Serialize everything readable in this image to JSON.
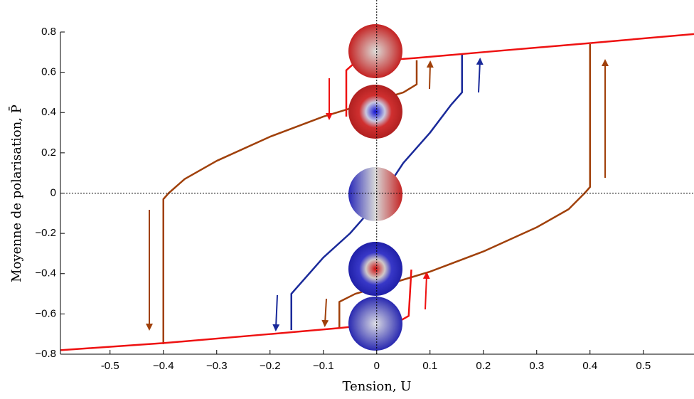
{
  "chart_data": {
    "type": "line",
    "xlabel": "Tension, U",
    "ylabel": "Moyenne de polarisation, P̄",
    "xlim": [
      -0.593,
      0.595
    ],
    "ylim": [
      -0.8,
      0.8
    ],
    "xticks": [
      -0.5,
      {
        "value": -0.4,
        "label": "−0.4"
      },
      {
        "value": -0.3,
        "label": "−0.3"
      },
      {
        "value": -0.2,
        "label": "−0.2"
      },
      {
        "value": -0.1,
        "label": "−0.1"
      },
      0,
      0.1,
      0.2,
      0.3,
      0.4,
      0.5
    ],
    "yticks": [
      {
        "value": -0.8,
        "label": "−0.8"
      },
      {
        "value": -0.6,
        "label": "−0.6"
      },
      {
        "value": -0.4,
        "label": "−0.4"
      },
      {
        "value": -0.2,
        "label": "−0.2"
      },
      0,
      0.2,
      0.4,
      0.6,
      0.8
    ],
    "series": [
      {
        "color": "#a0400a",
        "x": [
          0.075,
          0.075,
          0.05,
          0,
          -0.05,
          -0.1,
          -0.2,
          -0.3,
          -0.36,
          -0.39,
          -0.4,
          -0.4
        ],
        "values": [
          0.66,
          0.54,
          0.5,
          0.46,
          0.42,
          0.38,
          0.28,
          0.16,
          0.07,
          0.0,
          -0.03,
          -0.75
        ]
      },
      {
        "color": "#a0400a",
        "x": [
          -0.07,
          -0.07,
          -0.04,
          0,
          0.05,
          0.1,
          0.2,
          0.3,
          0.36,
          0.39,
          0.4,
          0.4
        ],
        "values": [
          -0.67,
          -0.54,
          -0.5,
          -0.47,
          -0.43,
          -0.39,
          -0.29,
          -0.17,
          -0.08,
          0.0,
          0.03,
          0.74
        ]
      },
      {
        "color": "#1a2a9a",
        "x": [
          -0.16,
          -0.16,
          -0.14,
          -0.1,
          -0.05,
          0,
          0.05,
          0.1,
          0.14,
          0.16,
          0.16
        ],
        "values": [
          -0.68,
          -0.5,
          -0.44,
          -0.32,
          -0.2,
          -0.05,
          0.15,
          0.3,
          0.44,
          0.5,
          0.69
        ]
      },
      {
        "color": "#ee1111",
        "x": [
          0.595,
          0.4,
          0.2,
          0.07,
          -0.04,
          -0.057,
          -0.057
        ],
        "values": [
          0.79,
          0.745,
          0.7,
          0.67,
          0.65,
          0.61,
          0.38
        ]
      },
      {
        "color": "#ee1111",
        "x": [
          -0.593,
          -0.4,
          -0.2,
          -0.07,
          0.04,
          0.06,
          0.065
        ],
        "values": [
          -0.78,
          -0.745,
          -0.7,
          -0.67,
          -0.64,
          -0.61,
          -0.38
        ]
      }
    ]
  }
}
